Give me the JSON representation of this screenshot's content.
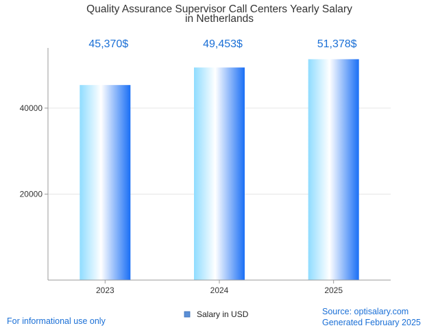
{
  "chart_data": {
    "type": "bar",
    "title_lines": [
      "Quality Assurance Supervisor Call Centers Yearly Salary",
      "in Netherlands"
    ],
    "categories": [
      "2023",
      "2024",
      "2025"
    ],
    "values": [
      45370,
      49453,
      51378
    ],
    "data_labels": [
      "45,370$",
      "49,453$",
      "51,378$"
    ],
    "ylim": [
      0,
      54000
    ],
    "yticks": [
      20000,
      40000
    ],
    "ytick_labels": [
      "20000",
      "40000"
    ],
    "grid": true,
    "legend": {
      "label": "Salary in USD",
      "position": "bottom"
    },
    "colors": {
      "bar_edge": "#1a6ff5",
      "bar_light": "#8fdcff",
      "bar_center": "#ffffff",
      "grid": "#e6e6e6",
      "axis": "#999999",
      "legend_swatch": "#5b8fd6"
    }
  },
  "footer": {
    "disclaimer": "For informational use only",
    "source": "Source: optisalary.com",
    "generated": "Generated February 2025"
  }
}
